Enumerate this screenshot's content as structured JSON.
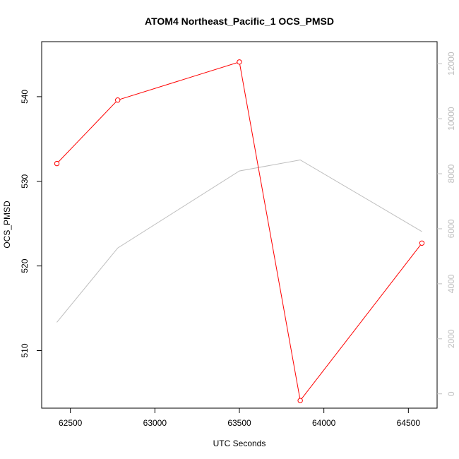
{
  "chart_data": {
    "type": "line",
    "title": "ATOM4 Northeast_Pacific_1 OCS_PMSD",
    "xlabel": "UTC Seconds",
    "ylabel": "OCS_PMSD",
    "xlim": [
      62330,
      64670
    ],
    "ylim": [
      503.2,
      546.5
    ],
    "y2lim": [
      -520,
      12800
    ],
    "x_ticks": [
      62500,
      63000,
      63500,
      64000,
      64500
    ],
    "y_ticks": [
      510,
      520,
      530,
      540
    ],
    "y2_ticks": [
      0,
      2000,
      4000,
      6000,
      8000,
      10000,
      12000
    ],
    "x_tick_labels": [
      "62500",
      "63000",
      "63500",
      "64000",
      "64500"
    ],
    "y_tick_labels": [
      "510",
      "520",
      "530",
      "540"
    ],
    "y2_tick_labels": [
      "0",
      "2000",
      "4000",
      "6000",
      "8000",
      "10000",
      "12000"
    ],
    "grid": false,
    "series": [
      {
        "axis": "left",
        "color": "#ff0000",
        "markers": "open-circle",
        "x": [
          62420,
          62780,
          63500,
          63860,
          64580
        ],
        "y": [
          532.1,
          539.6,
          544.1,
          504.1,
          522.7
        ]
      },
      {
        "axis": "right",
        "color": "#bebebe",
        "markers": "none",
        "x": [
          62420,
          62780,
          63500,
          63860,
          64580
        ],
        "y": [
          2600,
          5300,
          8100,
          8500,
          5900
        ]
      }
    ]
  }
}
